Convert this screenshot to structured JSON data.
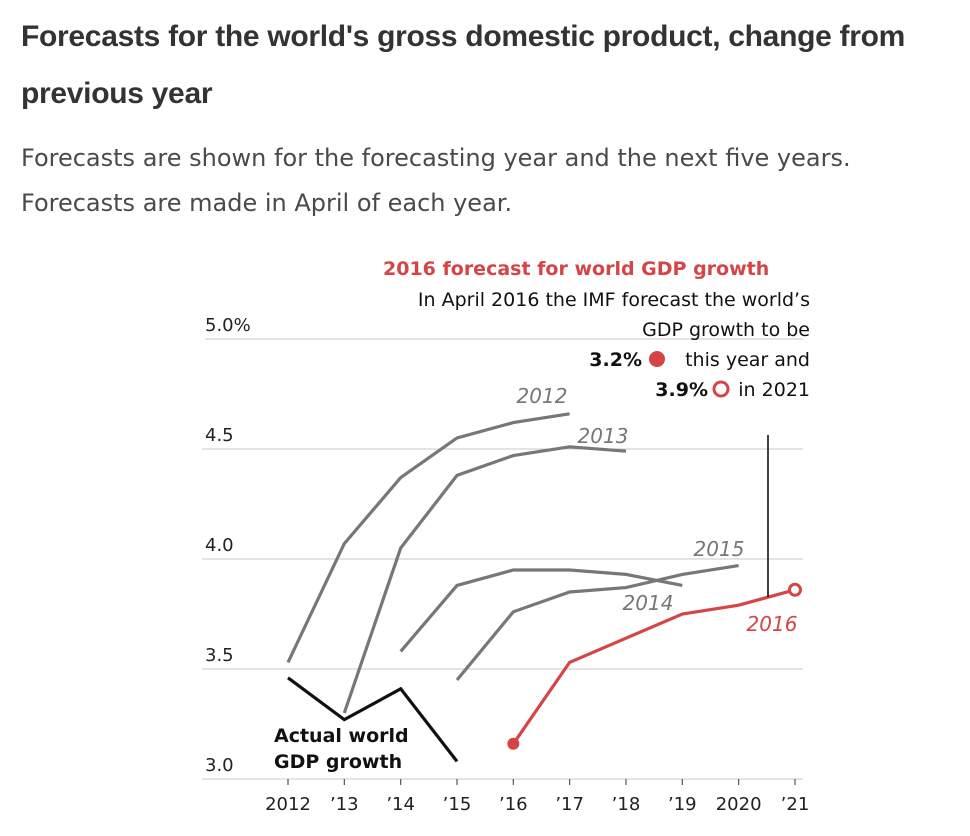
{
  "title": "Forecasts for the world's gross domestic product, change from previous year",
  "subtitle": "Forecasts are shown for the forecasting year and the next five years. Forecasts are made in April of each year.",
  "annotation": {
    "heading": "2016 forecast for world GDP growth",
    "line1": "In April 2016 the IMF forecast the world’s",
    "line2": "GDP growth to be",
    "value1": "3.2%",
    "text1": "this year and",
    "value2": "3.9%",
    "text2": "in 2021"
  },
  "actual_label_line1": "Actual world",
  "actual_label_line2": "GDP growth",
  "colors": {
    "forecast": "#777777",
    "highlight": "#d64545",
    "actual": "#111111",
    "grid": "#c8c8c8"
  },
  "chart_data": {
    "type": "line",
    "x_categories": [
      "2012",
      "’13",
      "’14",
      "’15",
      "’16",
      "’17",
      "’18",
      "’19",
      "2020",
      "’21"
    ],
    "y_tick_labels": [
      "5.0%",
      "4.5",
      "4.0",
      "3.5",
      "3.0"
    ],
    "y_ticks": [
      5.0,
      4.5,
      4.0,
      3.5,
      3.0
    ],
    "ylim": [
      3.0,
      5.0
    ],
    "grid": true,
    "series": [
      {
        "name": "2012",
        "kind": "forecast",
        "x": [
          "2012",
          "2013",
          "2014",
          "2015",
          "2016",
          "2017"
        ],
        "values": [
          3.53,
          4.07,
          4.37,
          4.55,
          4.62,
          4.66
        ]
      },
      {
        "name": "2013",
        "kind": "forecast",
        "x": [
          "2013",
          "2014",
          "2015",
          "2016",
          "2017",
          "2018"
        ],
        "values": [
          3.3,
          4.05,
          4.38,
          4.47,
          4.51,
          4.49
        ]
      },
      {
        "name": "2014",
        "kind": "forecast",
        "x": [
          "2014",
          "2015",
          "2016",
          "2017",
          "2018",
          "2019"
        ],
        "values": [
          3.58,
          3.88,
          3.95,
          3.95,
          3.93,
          3.88
        ]
      },
      {
        "name": "2015",
        "kind": "forecast",
        "x": [
          "2015",
          "2016",
          "2017",
          "2018",
          "2019",
          "2020"
        ],
        "values": [
          3.45,
          3.76,
          3.85,
          3.87,
          3.93,
          3.97
        ]
      },
      {
        "name": "2016",
        "kind": "highlight",
        "x": [
          "2016",
          "2017",
          "2018",
          "2019",
          "2020",
          "2021"
        ],
        "values": [
          3.16,
          3.53,
          3.64,
          3.75,
          3.79,
          3.86
        ]
      },
      {
        "name": "Actual world GDP growth",
        "kind": "actual",
        "x": [
          "2012",
          "2013",
          "2014",
          "2015"
        ],
        "values": [
          3.46,
          3.27,
          3.41,
          3.08
        ]
      }
    ]
  }
}
